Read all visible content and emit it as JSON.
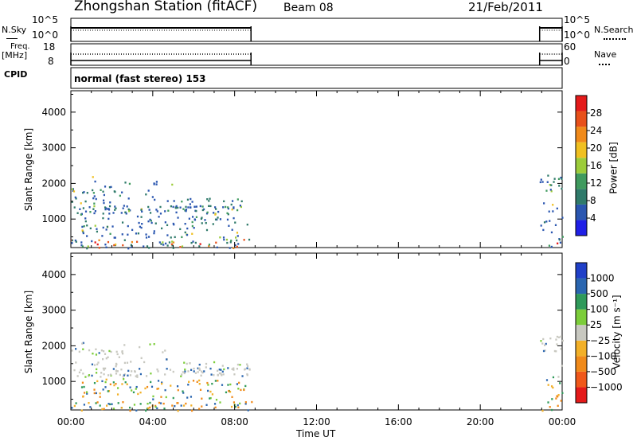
{
  "header": {
    "title": "Zhongshan Station (fitACF)",
    "beam": "Beam 08",
    "date": "21/Feb/2011"
  },
  "strip_nsky": {
    "left_label": "N.Sky",
    "left_ticks": [
      "10^5",
      "10^0"
    ],
    "right_label": "N.Search",
    "right_ticks": [
      "10^5",
      "10^0"
    ]
  },
  "strip_freq": {
    "left_label_top": "Freq.",
    "left_label_bottom": "[MHz]",
    "left_ticks": [
      "18",
      "8"
    ],
    "right_label": "Nave",
    "right_ticks": [
      "60",
      "0"
    ]
  },
  "strip_cpid": {
    "left_label": "CPID",
    "mode_text": "normal (fast stereo) 153"
  },
  "colors": {
    "power_scale": [
      "#1f1fe6",
      "#2a56b0",
      "#2f7a6a",
      "#3f9a5e",
      "#9ccc3a",
      "#f0c020",
      "#f08a1a",
      "#e8501a",
      "#e41a1a"
    ],
    "velocity_scale": [
      "#e41a1a",
      "#f0581a",
      "#f08a1a",
      "#f2b028",
      "#c8c8c0",
      "#7ccd3a",
      "#2f9a5a",
      "#2a66b0",
      "#2040c8"
    ]
  },
  "chart_data": [
    {
      "type": "heatmap",
      "name": "power",
      "ylabel": "Slant Range [km]",
      "yticks": [
        "1000",
        "2000",
        "3000",
        "4000"
      ],
      "ylim": [
        200,
        4600
      ],
      "xlim": [
        0,
        24
      ],
      "colorbar_label": "Power [dB]",
      "colorbar_ticks": [
        "4",
        "8",
        "12",
        "16",
        "20",
        "24",
        "28"
      ],
      "clim": [
        0,
        32
      ],
      "data_coverage_hours": [
        [
          0,
          8.8
        ],
        [
          22.9,
          24
        ]
      ]
    },
    {
      "type": "heatmap",
      "name": "velocity",
      "ylabel": "Slant Range [km]",
      "yticks": [
        "1000",
        "2000",
        "3000",
        "4000"
      ],
      "ylim": [
        200,
        4600
      ],
      "xlim": [
        0,
        24
      ],
      "colorbar_label": "Velocity [m s⁻¹]",
      "colorbar_ticks": [
        "1000",
        "500",
        "100",
        "25",
        "−25",
        "−100",
        "−500",
        "−1000"
      ],
      "data_coverage_hours": [
        [
          0,
          8.8
        ],
        [
          22.9,
          24
        ]
      ]
    }
  ],
  "x_axis": {
    "label": "Time UT",
    "ticks": [
      "00:00",
      "04:00",
      "08:00",
      "12:00",
      "16:00",
      "20:00",
      "00:00"
    ]
  }
}
